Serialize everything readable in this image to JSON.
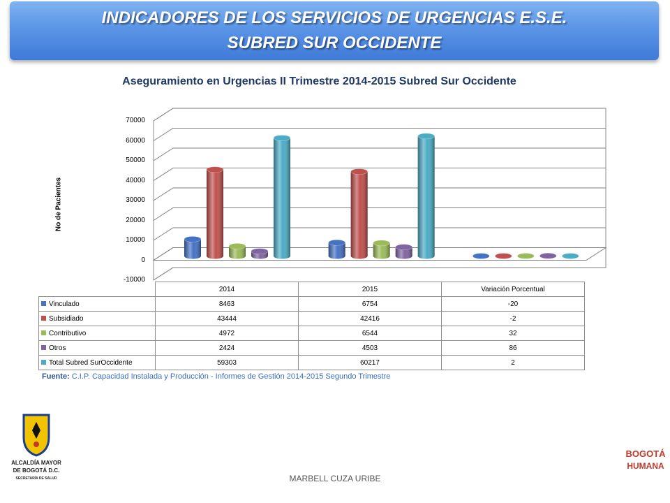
{
  "header": {
    "line1": "INDICADORES DE LOS SERVICIOS DE URGENCIAS E.S.E.",
    "line2": "SUBRED SUR OCCIDENTE"
  },
  "chart_data": {
    "type": "bar",
    "title": "Aseguramiento en Urgencias II Trimestre 2014-2015 Subred Sur Occidente",
    "ylabel": "No de Pacientes",
    "xlabel": "",
    "categories": [
      "2014",
      "2015",
      "Variación Porcentual"
    ],
    "series": [
      {
        "name": "Vinculado",
        "values": [
          8463,
          6754,
          -20
        ],
        "color": "#4472c4"
      },
      {
        "name": "Subsidiado",
        "values": [
          43444,
          42416,
          -2
        ],
        "color": "#c0504d"
      },
      {
        "name": "Contributivo",
        "values": [
          4972,
          6544,
          32
        ],
        "color": "#9bbb59"
      },
      {
        "name": "Otros",
        "values": [
          2424,
          4503,
          86
        ],
        "color": "#8064a2"
      },
      {
        "name": "Total Subred SurOccidente",
        "values": [
          59303,
          60217,
          2
        ],
        "color": "#4bacc6"
      }
    ],
    "ylim": [
      -10000,
      70000
    ],
    "yticks": [
      70000,
      60000,
      50000,
      40000,
      30000,
      20000,
      10000,
      0,
      -10000
    ],
    "grid": true,
    "legend": "data-table"
  },
  "source": {
    "label": "Fuente:",
    "text": "C.I.P. Capacidad Instalada y Producción - Informes de Gestión 2014-2015 Segundo Trimestre"
  },
  "footer": "MARBELL CUZA URIBE",
  "logo_left": {
    "line1": "ALCALDÍA MAYOR",
    "line2": "DE BOGOTÁ D.C.",
    "line3": "SECRETARÍA DE SALUD"
  },
  "logo_right": {
    "line1": "BOGOTÁ",
    "line2": "HUMANA"
  }
}
